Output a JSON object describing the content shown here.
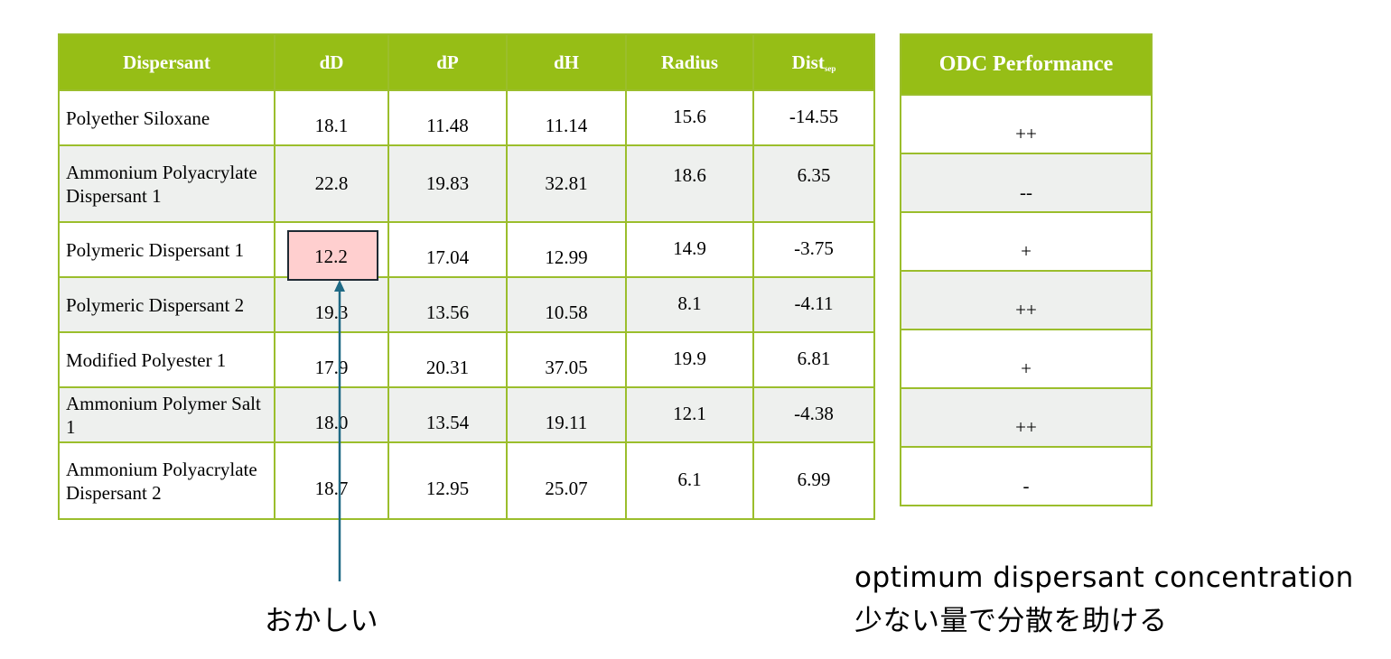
{
  "table": {
    "headers": {
      "dispersant": "Dispersant",
      "dD": "dD",
      "dP": "dP",
      "dH": "dH",
      "radius": "Radius",
      "dist": "Dist",
      "dist_sub": "sep"
    },
    "rows": [
      {
        "dispersant": "Polyether Siloxane",
        "dD": "18.1",
        "dP": "11.48",
        "dH": "11.14",
        "radius": "15.6",
        "dist": "-14.55"
      },
      {
        "dispersant": "Ammonium Polyacrylate Dispersant 1",
        "dD": "22.8",
        "dP": "19.83",
        "dH": "32.81",
        "radius": "18.6",
        "dist": "6.35"
      },
      {
        "dispersant": "Polymeric Dispersant 1",
        "dD": "12.2",
        "dP": "17.04",
        "dH": "12.99",
        "radius": "14.9",
        "dist": "-3.75"
      },
      {
        "dispersant": "Polymeric Dispersant 2",
        "dD": "19.3",
        "dP": "13.56",
        "dH": "10.58",
        "radius": "8.1",
        "dist": "-4.11"
      },
      {
        "dispersant": "Modified Polyester 1",
        "dD": "17.9",
        "dP": "20.31",
        "dH": "37.05",
        "radius": "19.9",
        "dist": "6.81"
      },
      {
        "dispersant": "Ammonium Polymer Salt 1",
        "dD": "18.0",
        "dP": "13.54",
        "dH": "19.11",
        "radius": "12.1",
        "dist": "-4.38"
      },
      {
        "dispersant": "Ammonium Polyacrylate Dispersant 2",
        "dD": "18.7",
        "dP": "12.95",
        "dH": "25.07",
        "radius": "6.1",
        "dist": "6.99"
      }
    ]
  },
  "odc": {
    "header": "ODC Performance",
    "values": [
      "++",
      "--",
      "+",
      "++",
      "+",
      "++",
      "-"
    ]
  },
  "notes": {
    "left": "おかしい",
    "right_line1": "optimum dispersant concentration",
    "right_line2": "少ない量で分散を助ける"
  },
  "colors": {
    "header_bg": "#96be16",
    "border": "#9bbe2c",
    "alt_row": "#eef0ee",
    "highlight": "#ffcfcf",
    "arrow": "#1f6a85"
  }
}
